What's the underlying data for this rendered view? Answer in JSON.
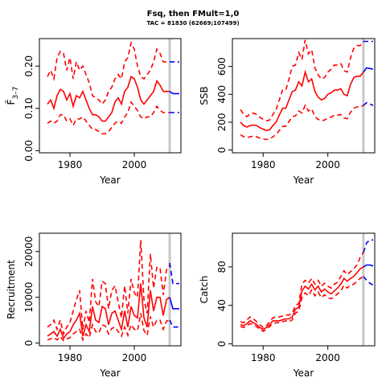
{
  "title": "Fsq, then FMult=1,0",
  "subtitle": "TAC = 81830 (62669;107499)",
  "colors": {
    "history": "#ff0000",
    "forecast": "#0000ff",
    "marker": "#c8c8c8",
    "axis": "#000000"
  },
  "chart_data": [
    {
      "type": "line",
      "name": "fbar",
      "ylabel": "F̄ 3-7",
      "ylabel_main": "F̄",
      "ylabel_sub": "3–7",
      "xlabel": "Year",
      "xlim": [
        1970.5,
        2014.5
      ],
      "ylim": [
        -0.005,
        0.265
      ],
      "xticks": [
        1980,
        2000
      ],
      "yticks": [
        0,
        0.1,
        0.2
      ],
      "ytick_labels": [
        "0.00",
        "0.10",
        "0.20"
      ],
      "vline": 2011,
      "x": [
        1973,
        1974,
        1975,
        1976,
        1977,
        1978,
        1979,
        1980,
        1981,
        1982,
        1983,
        1984,
        1985,
        1986,
        1987,
        1988,
        1989,
        1990,
        1991,
        1992,
        1993,
        1994,
        1995,
        1996,
        1997,
        1998,
        1999,
        2000,
        2001,
        2002,
        2003,
        2004,
        2005,
        2006,
        2007,
        2008,
        2009,
        2010,
        2011
      ],
      "series": [
        {
          "role": "median",
          "values": [
            0.11,
            0.12,
            0.1,
            0.13,
            0.145,
            0.14,
            0.12,
            0.135,
            0.105,
            0.13,
            0.125,
            0.14,
            0.12,
            0.1,
            0.085,
            0.085,
            0.08,
            0.07,
            0.07,
            0.08,
            0.09,
            0.115,
            0.125,
            0.11,
            0.14,
            0.15,
            0.175,
            0.17,
            0.15,
            0.12,
            0.11,
            0.12,
            0.13,
            0.14,
            0.165,
            0.155,
            0.14,
            0.14,
            0.14
          ]
        },
        {
          "role": "upper",
          "values": [
            0.175,
            0.19,
            0.17,
            0.22,
            0.235,
            0.23,
            0.19,
            0.22,
            0.17,
            0.21,
            0.19,
            0.2,
            0.18,
            0.16,
            0.13,
            0.125,
            0.12,
            0.11,
            0.12,
            0.14,
            0.15,
            0.17,
            0.18,
            0.17,
            0.21,
            0.22,
            0.255,
            0.24,
            0.2,
            0.175,
            0.17,
            0.18,
            0.19,
            0.21,
            0.24,
            0.23,
            0.21,
            0.21,
            0.21
          ]
        },
        {
          "role": "lower",
          "values": [
            0.065,
            0.07,
            0.065,
            0.07,
            0.085,
            0.085,
            0.07,
            0.075,
            0.06,
            0.075,
            0.075,
            0.08,
            0.07,
            0.06,
            0.05,
            0.05,
            0.045,
            0.04,
            0.04,
            0.045,
            0.055,
            0.065,
            0.07,
            0.065,
            0.08,
            0.09,
            0.115,
            0.105,
            0.095,
            0.08,
            0.075,
            0.08,
            0.08,
            0.09,
            0.105,
            0.095,
            0.09,
            0.09,
            0.09
          ]
        }
      ],
      "forecast_x": [
        2011,
        2012,
        2013,
        2014
      ],
      "forecast_series": [
        {
          "role": "median",
          "values": [
            0.14,
            0.135,
            0.135,
            0.135
          ]
        },
        {
          "role": "upper",
          "values": [
            0.21,
            0.21,
            0.21,
            0.21
          ]
        },
        {
          "role": "lower",
          "values": [
            0.09,
            0.09,
            0.09,
            0.09
          ]
        }
      ]
    },
    {
      "type": "line",
      "name": "ssb",
      "ylabel": "SSB",
      "xlabel": "Year",
      "xlim": [
        1970.5,
        2014.5
      ],
      "ylim": [
        -20,
        800
      ],
      "xticks": [
        1980,
        2000
      ],
      "yticks": [
        0,
        200,
        400,
        600
      ],
      "ytick_labels": [
        "0",
        "200",
        "400",
        "600"
      ],
      "vline": 2011,
      "x": [
        1973,
        1974,
        1975,
        1976,
        1977,
        1978,
        1979,
        1980,
        1981,
        1982,
        1983,
        1984,
        1985,
        1986,
        1987,
        1988,
        1989,
        1990,
        1991,
        1992,
        1993,
        1994,
        1995,
        1996,
        1997,
        1998,
        1999,
        2000,
        2001,
        2002,
        2003,
        2004,
        2005,
        2006,
        2007,
        2008,
        2009,
        2010,
        2011
      ],
      "series": [
        {
          "role": "median",
          "values": [
            200,
            175,
            165,
            175,
            180,
            175,
            160,
            150,
            140,
            145,
            175,
            200,
            250,
            300,
            300,
            360,
            420,
            430,
            490,
            460,
            560,
            490,
            510,
            420,
            380,
            360,
            370,
            400,
            410,
            430,
            430,
            440,
            400,
            390,
            470,
            520,
            530,
            530,
            560
          ]
        },
        {
          "role": "upper",
          "values": [
            290,
            255,
            240,
            260,
            265,
            255,
            235,
            220,
            210,
            215,
            255,
            290,
            360,
            430,
            430,
            510,
            600,
            610,
            700,
            650,
            790,
            690,
            720,
            590,
            540,
            510,
            520,
            560,
            580,
            610,
            610,
            620,
            570,
            560,
            660,
            730,
            750,
            750,
            780
          ]
        },
        {
          "role": "lower",
          "values": [
            110,
            95,
            90,
            95,
            100,
            95,
            85,
            80,
            75,
            78,
            95,
            110,
            140,
            170,
            170,
            205,
            240,
            245,
            280,
            265,
            320,
            280,
            295,
            240,
            220,
            210,
            215,
            230,
            235,
            250,
            250,
            255,
            230,
            225,
            270,
            300,
            310,
            310,
            320
          ]
        }
      ],
      "forecast_x": [
        2011,
        2012,
        2013,
        2014
      ],
      "forecast_series": [
        {
          "role": "median",
          "values": [
            560,
            590,
            585,
            580
          ]
        },
        {
          "role": "upper",
          "values": [
            780,
            780,
            780,
            780
          ]
        },
        {
          "role": "lower",
          "values": [
            320,
            340,
            330,
            320
          ]
        }
      ]
    },
    {
      "type": "line",
      "name": "recruitment",
      "ylabel": "Recruitment",
      "xlabel": "Year",
      "xlim": [
        1970.5,
        2014.5
      ],
      "ylim": [
        -600,
        24000
      ],
      "xticks": [
        1980,
        2000
      ],
      "yticks": [
        0,
        10000,
        20000
      ],
      "ytick_labels": [
        "0",
        "10000",
        "20000"
      ],
      "vline": 2011,
      "x": [
        1973,
        1974,
        1975,
        1976,
        1977,
        1978,
        1979,
        1980,
        1981,
        1982,
        1983,
        1984,
        1985,
        1986,
        1987,
        1988,
        1989,
        1990,
        1991,
        1992,
        1993,
        1994,
        1995,
        1996,
        1997,
        1998,
        1999,
        2000,
        2001,
        2002,
        2003,
        2004,
        2005,
        2006,
        2007,
        2008,
        2009,
        2010,
        2011
      ],
      "series": [
        {
          "role": "median",
          "values": [
            1500,
            2000,
            2500,
            1500,
            3000,
            1000,
            2000,
            2500,
            4000,
            5000,
            6500,
            1500,
            4000,
            2500,
            8000,
            5000,
            4500,
            8000,
            7500,
            4000,
            6500,
            7000,
            5000,
            3000,
            7000,
            3500,
            8000,
            6000,
            5500,
            13000,
            5500,
            3500,
            11500,
            7000,
            10000,
            10000,
            6000,
            9500,
            10000
          ]
        },
        {
          "role": "upper",
          "values": [
            3500,
            4000,
            5000,
            3000,
            5000,
            2000,
            3500,
            4500,
            7000,
            9500,
            11500,
            3000,
            7000,
            4500,
            14000,
            9000,
            8000,
            13500,
            13000,
            7500,
            11500,
            12500,
            9000,
            5500,
            12500,
            6500,
            14000,
            11000,
            10000,
            22500,
            9500,
            6500,
            19500,
            12000,
            16500,
            16500,
            10500,
            16000,
            17000
          ]
        },
        {
          "role": "lower",
          "values": [
            700,
            900,
            1200,
            700,
            1400,
            500,
            900,
            1200,
            2000,
            2500,
            3000,
            700,
            2000,
            1200,
            4000,
            2500,
            2200,
            4000,
            3700,
            2000,
            3200,
            3500,
            2500,
            1500,
            3500,
            1700,
            4000,
            3000,
            2700,
            6500,
            2700,
            1700,
            5800,
            3500,
            5000,
            5000,
            3000,
            4800,
            5000
          ]
        }
      ],
      "forecast_x": [
        2011,
        2012,
        2013,
        2014
      ],
      "forecast_series": [
        {
          "role": "median",
          "values": [
            10000,
            7500,
            7500,
            7500
          ]
        },
        {
          "role": "upper",
          "values": [
            17500,
            13000,
            13000,
            13000
          ]
        },
        {
          "role": "lower",
          "values": [
            5000,
            3500,
            3500,
            3500
          ]
        }
      ]
    },
    {
      "type": "line",
      "name": "catch",
      "ylabel": "Catch",
      "xlabel": "Year",
      "xlim": [
        1970.5,
        2014.5
      ],
      "ylim": [
        -2,
        115
      ],
      "xticks": [
        1980,
        2000
      ],
      "yticks": [
        0,
        40,
        80
      ],
      "ytick_labels": [
        "0",
        "40",
        "80"
      ],
      "vline": 2011,
      "x": [
        1973,
        1974,
        1975,
        1976,
        1977,
        1978,
        1979,
        1980,
        1981,
        1982,
        1983,
        1984,
        1985,
        1986,
        1987,
        1988,
        1989,
        1990,
        1991,
        1992,
        1993,
        1994,
        1995,
        1996,
        1997,
        1998,
        1999,
        2000,
        2001,
        2002,
        2003,
        2004,
        2005,
        2006,
        2007,
        2008,
        2009,
        2010,
        2011
      ],
      "series": [
        {
          "role": "median",
          "values": [
            20,
            19,
            21,
            24,
            22,
            20,
            17,
            15,
            17,
            20,
            24,
            24,
            24,
            25,
            26,
            26,
            28,
            36,
            38,
            55,
            60,
            57,
            62,
            56,
            60,
            54,
            57,
            54,
            52,
            55,
            58,
            62,
            68,
            65,
            68,
            70,
            74,
            78,
            80
          ]
        },
        {
          "role": "upper",
          "values": [
            23,
            22,
            25,
            28,
            26,
            23,
            20,
            17,
            19,
            23,
            27,
            28,
            28,
            29,
            30,
            30,
            32,
            40,
            42,
            62,
            66,
            63,
            68,
            62,
            66,
            60,
            63,
            60,
            58,
            62,
            64,
            70,
            76,
            72,
            75,
            78,
            82,
            90,
            95
          ]
        },
        {
          "role": "lower",
          "values": [
            18,
            17,
            19,
            21,
            20,
            18,
            15,
            13,
            15,
            18,
            21,
            22,
            22,
            23,
            24,
            23,
            25,
            32,
            34,
            48,
            53,
            50,
            56,
            50,
            54,
            48,
            51,
            48,
            47,
            49,
            52,
            55,
            61,
            58,
            61,
            62,
            65,
            68,
            70
          ]
        }
      ],
      "forecast_x": [
        2011,
        2012,
        2013,
        2014
      ],
      "forecast_series": [
        {
          "role": "median",
          "values": [
            80,
            82,
            82,
            81
          ]
        },
        {
          "role": "upper",
          "values": [
            95,
            105,
            108,
            108
          ]
        },
        {
          "role": "lower",
          "values": [
            70,
            66,
            63,
            61
          ]
        }
      ]
    }
  ]
}
